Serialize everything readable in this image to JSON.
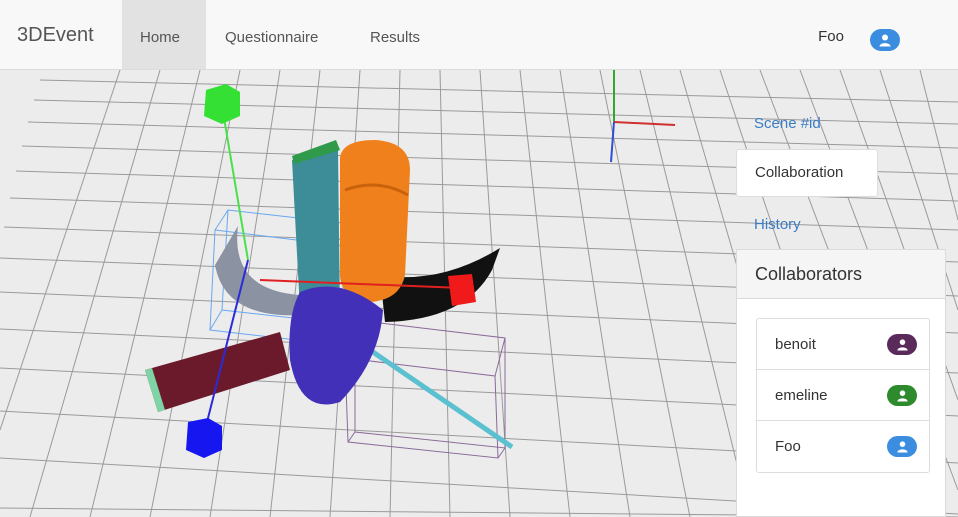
{
  "navbar": {
    "brand": "3DEvent",
    "items": [
      {
        "label": "Home",
        "active": true
      },
      {
        "label": "Questionnaire",
        "active": false
      },
      {
        "label": "Results",
        "active": false
      }
    ],
    "user": "Foo",
    "user_icon": "user-icon",
    "user_icon_color": "#3b8de0"
  },
  "side": {
    "scene_link": "Scene #id",
    "collab_tab": "Collaboration",
    "history_link": "History"
  },
  "collaborators": {
    "title": "Collaborators",
    "items": [
      {
        "name": "benoit",
        "color": "#5a2a5a",
        "icon": "user-icon"
      },
      {
        "name": "emeline",
        "color": "#2d8a2d",
        "icon": "user-icon"
      },
      {
        "name": "Foo",
        "color": "#3b8de0",
        "icon": "user-icon"
      }
    ]
  }
}
